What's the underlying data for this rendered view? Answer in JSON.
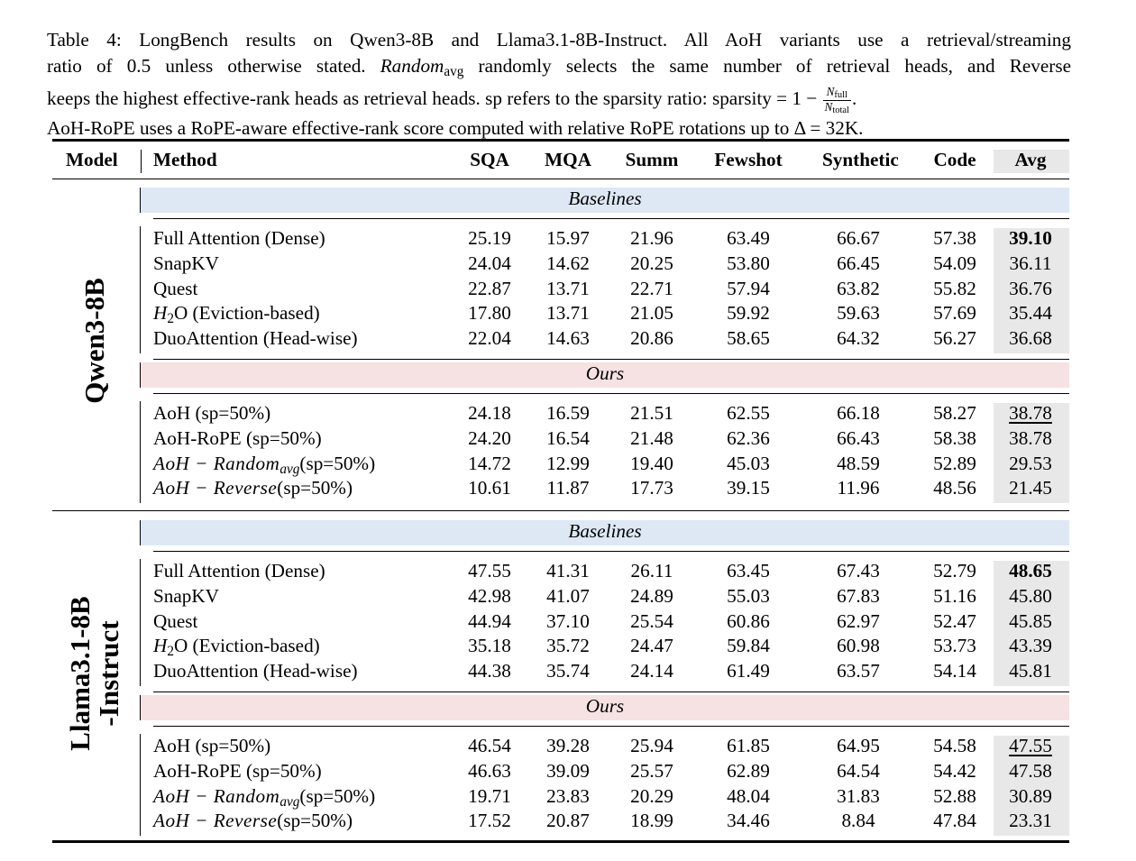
{
  "caption": {
    "line1": "Table 4: LongBench results on Qwen3-8B and Llama3.1-8B-Instruct. All AoH variants use a retrieval/streaming",
    "line2_a": "ratio of 0.5 unless otherwise stated.",
    "line2_rand": "Random",
    "line2_rand_sub": "avg",
    "line2_b": "randomly selects the same number of retrieval heads, and Reverse",
    "line3_a": "keeps the highest effective-rank heads as retrieval heads.  sp refers to the sparsity ratio: sparsity = 1 −",
    "frac_num": "N",
    "frac_num_sub": "full",
    "frac_den": "N",
    "frac_den_sub": "total",
    "line3_end": ".",
    "line4": "AoH-RoPE uses a RoPE-aware effective-rank score computed with relative RoPE rotations up to Δ = 32K."
  },
  "header": {
    "model": "Model",
    "method": "Method",
    "cols": [
      "SQA",
      "MQA",
      "Summ",
      "Fewshot",
      "Synthetic",
      "Code",
      "Avg"
    ]
  },
  "section_labels": {
    "baselines": "Baselines",
    "ours": "Ours"
  },
  "groups": [
    {
      "model": "Qwen3-8B",
      "baselines": [
        {
          "method": "Full Attention (Dense)",
          "values": [
            "25.19",
            "15.97",
            "21.96",
            "63.49",
            "66.67",
            "57.38",
            "39.10"
          ],
          "avg_style": "bold"
        },
        {
          "method": "SnapKV",
          "values": [
            "24.04",
            "14.62",
            "20.25",
            "53.80",
            "66.45",
            "54.09",
            "36.11"
          ]
        },
        {
          "method": "Quest",
          "values": [
            "22.87",
            "13.71",
            "22.71",
            "57.94",
            "63.82",
            "55.82",
            "36.76"
          ]
        },
        {
          "method_prefix": "H",
          "method_sub": "2",
          "method": "O (Eviction-based)",
          "values": [
            "17.80",
            "13.71",
            "21.05",
            "59.92",
            "59.63",
            "57.69",
            "35.44"
          ]
        },
        {
          "method": "DuoAttention (Head-wise)",
          "values": [
            "22.04",
            "14.63",
            "20.86",
            "58.65",
            "64.32",
            "56.27",
            "36.68"
          ]
        }
      ],
      "ours": [
        {
          "method": "AoH (sp=50%)",
          "values": [
            "24.18",
            "16.59",
            "21.51",
            "62.55",
            "66.18",
            "58.27",
            "38.78"
          ],
          "avg_style": "underline"
        },
        {
          "method": "AoH-RoPE (sp=50%)",
          "values": [
            "24.20",
            "16.54",
            "21.48",
            "62.36",
            "66.43",
            "58.38",
            "38.78"
          ]
        },
        {
          "method_it": "AoH − Random",
          "method_sub": "avg",
          "method": "(sp=50%)",
          "values": [
            "14.72",
            "12.99",
            "19.40",
            "45.03",
            "48.59",
            "52.89",
            "29.53"
          ]
        },
        {
          "method_it": "AoH − Reverse",
          "method": "(sp=50%)",
          "values": [
            "10.61",
            "11.87",
            "17.73",
            "39.15",
            "11.96",
            "48.56",
            "21.45"
          ]
        }
      ]
    },
    {
      "model_line1": "Llama3.1-8B",
      "model_line2": "-Instruct",
      "baselines": [
        {
          "method": "Full Attention (Dense)",
          "values": [
            "47.55",
            "41.31",
            "26.11",
            "63.45",
            "67.43",
            "52.79",
            "48.65"
          ],
          "avg_style": "bold"
        },
        {
          "method": "SnapKV",
          "values": [
            "42.98",
            "41.07",
            "24.89",
            "55.03",
            "67.83",
            "51.16",
            "45.80"
          ]
        },
        {
          "method": "Quest",
          "values": [
            "44.94",
            "37.10",
            "25.54",
            "60.86",
            "62.97",
            "52.47",
            "45.85"
          ]
        },
        {
          "method_prefix": "H",
          "method_sub": "2",
          "method": "O (Eviction-based)",
          "values": [
            "35.18",
            "35.72",
            "24.47",
            "59.84",
            "60.98",
            "53.73",
            "43.39"
          ]
        },
        {
          "method": "DuoAttention (Head-wise)",
          "values": [
            "44.38",
            "35.74",
            "24.14",
            "61.49",
            "63.57",
            "54.14",
            "45.81"
          ]
        }
      ],
      "ours": [
        {
          "method": "AoH (sp=50%)",
          "values": [
            "46.54",
            "39.28",
            "25.94",
            "61.85",
            "64.95",
            "54.58",
            "47.55"
          ],
          "avg_style": "underline"
        },
        {
          "method": "AoH-RoPE (sp=50%)",
          "values": [
            "46.63",
            "39.09",
            "25.57",
            "62.89",
            "64.54",
            "54.42",
            "47.58"
          ]
        },
        {
          "method_it": "AoH − Random",
          "method_sub": "avg",
          "method": "(sp=50%)",
          "values": [
            "19.71",
            "23.83",
            "20.29",
            "48.04",
            "31.83",
            "52.88",
            "30.89"
          ]
        },
        {
          "method_it": "AoH − Reverse",
          "method": "(sp=50%)",
          "values": [
            "17.52",
            "20.87",
            "18.99",
            "34.46",
            "8.84",
            "47.84",
            "23.31"
          ]
        }
      ]
    }
  ],
  "colors": {
    "baselines_band": "#dde8f4",
    "ours_band": "#f6e2e2",
    "avg_column": "#e8e8e8"
  }
}
